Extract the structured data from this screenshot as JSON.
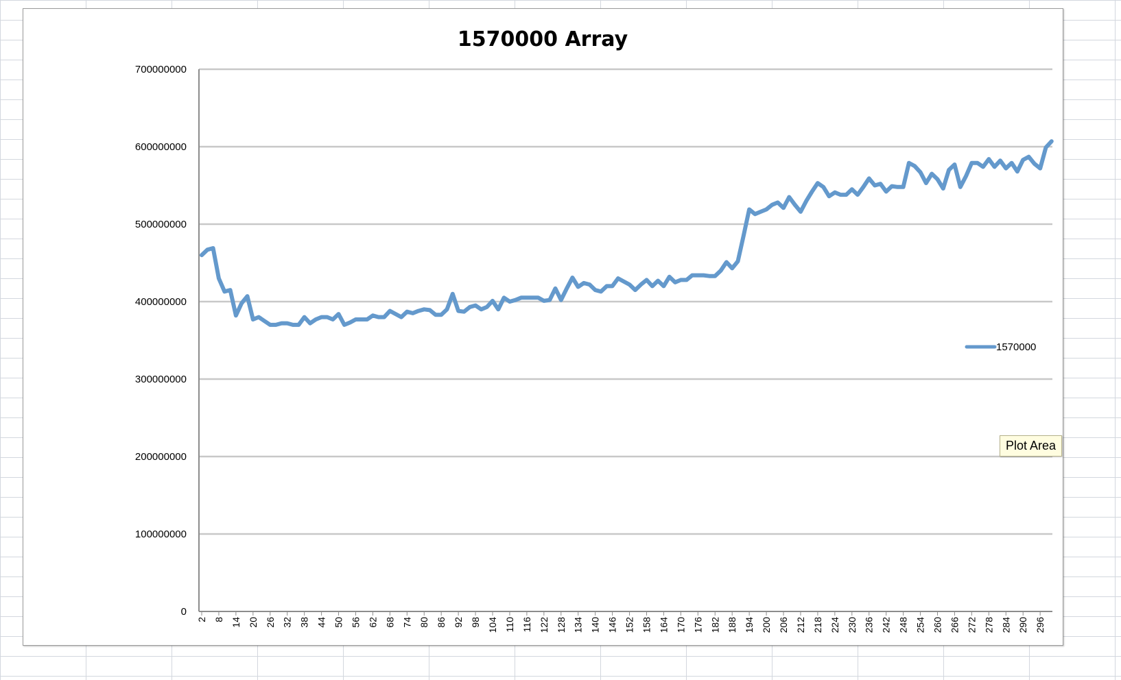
{
  "colors": {
    "series": "#6499cc",
    "gridline": "#c8c8c8",
    "axis": "#8c8c8c",
    "sheet_grid": "#d3d7de",
    "tooltip_bg": "#fffde0"
  },
  "tooltip": {
    "text": "Plot Area"
  },
  "chart_data": {
    "type": "line",
    "title": "1570000 Array",
    "xlabel": "",
    "ylabel": "",
    "ylim": [
      0,
      700000000
    ],
    "yticks": [
      0,
      100000000,
      200000000,
      300000000,
      400000000,
      500000000,
      600000000,
      700000000
    ],
    "ytick_labels": [
      "0",
      "100000000",
      "200000000",
      "300000000",
      "400000000",
      "500000000",
      "600000000",
      "700000000"
    ],
    "xtick_labels": [
      "2",
      "8",
      "14",
      "20",
      "26",
      "32",
      "38",
      "44",
      "50",
      "56",
      "62",
      "68",
      "74",
      "80",
      "86",
      "92",
      "98",
      "104",
      "110",
      "116",
      "122",
      "128",
      "134",
      "140",
      "146",
      "152",
      "158",
      "164",
      "170",
      "176",
      "182",
      "188",
      "194",
      "200",
      "206",
      "212",
      "218",
      "224",
      "230",
      "236",
      "242",
      "248",
      "254",
      "260",
      "266",
      "272",
      "278",
      "284",
      "290",
      "296"
    ],
    "grid": true,
    "legend": {
      "position": "right",
      "entries": [
        "1570000"
      ]
    },
    "series": [
      {
        "name": "1570000",
        "x": [
          2,
          4,
          6,
          8,
          10,
          12,
          14,
          16,
          18,
          20,
          22,
          24,
          26,
          28,
          30,
          32,
          34,
          36,
          38,
          40,
          42,
          44,
          46,
          48,
          50,
          52,
          54,
          56,
          58,
          60,
          62,
          64,
          66,
          68,
          70,
          72,
          74,
          76,
          78,
          80,
          82,
          84,
          86,
          88,
          90,
          92,
          94,
          96,
          98,
          100,
          102,
          104,
          106,
          108,
          110,
          112,
          114,
          116,
          118,
          120,
          122,
          124,
          126,
          128,
          130,
          132,
          134,
          136,
          138,
          140,
          142,
          144,
          146,
          148,
          150,
          152,
          154,
          156,
          158,
          160,
          162,
          164,
          166,
          168,
          170,
          172,
          174,
          176,
          178,
          180,
          182,
          184,
          186,
          188,
          190,
          192,
          194,
          196,
          198,
          200,
          202,
          204,
          206,
          208,
          210,
          212,
          214,
          216,
          218,
          220,
          222,
          224,
          226,
          228,
          230,
          232,
          234,
          236,
          238,
          240,
          242,
          244,
          246,
          248,
          250,
          252,
          254,
          256,
          258,
          260,
          262,
          264,
          266,
          268,
          270,
          272,
          274,
          276,
          278,
          280,
          282,
          284,
          286,
          288,
          290,
          292,
          294,
          296,
          298,
          300
        ],
        "values": [
          460000000,
          467000000,
          469000000,
          430000000,
          413000000,
          415000000,
          382000000,
          398000000,
          407000000,
          377000000,
          380000000,
          375000000,
          370000000,
          370000000,
          372000000,
          372000000,
          370000000,
          370000000,
          380000000,
          372000000,
          377000000,
          380000000,
          380000000,
          377000000,
          384000000,
          370000000,
          373000000,
          377000000,
          377000000,
          377000000,
          382000000,
          380000000,
          380000000,
          388000000,
          384000000,
          380000000,
          387000000,
          385000000,
          388000000,
          390000000,
          389000000,
          383000000,
          383000000,
          390000000,
          410000000,
          388000000,
          387000000,
          393000000,
          395000000,
          390000000,
          393000000,
          401000000,
          390000000,
          405000000,
          400000000,
          402000000,
          405000000,
          405000000,
          405000000,
          405000000,
          401000000,
          402000000,
          417000000,
          402000000,
          417000000,
          431000000,
          419000000,
          424000000,
          422000000,
          415000000,
          413000000,
          420000000,
          420000000,
          430000000,
          426000000,
          422000000,
          415000000,
          422000000,
          428000000,
          420000000,
          427000000,
          420000000,
          432000000,
          425000000,
          428000000,
          428000000,
          434000000,
          434000000,
          434000000,
          433000000,
          433000000,
          440000000,
          451000000,
          443000000,
          452000000,
          485000000,
          519000000,
          513000000,
          516000000,
          519000000,
          525000000,
          528000000,
          521000000,
          535000000,
          525000000,
          516000000,
          530000000,
          542000000,
          553000000,
          548000000,
          536000000,
          541000000,
          538000000,
          538000000,
          545000000,
          538000000,
          548000000,
          559000000,
          550000000,
          552000000,
          542000000,
          549000000,
          548000000,
          548000000,
          579000000,
          575000000,
          567000000,
          553000000,
          565000000,
          558000000,
          546000000,
          570000000,
          577000000,
          548000000,
          562000000,
          579000000,
          579000000,
          574000000,
          584000000,
          574000000,
          582000000,
          572000000,
          579000000,
          568000000,
          583000000,
          587000000,
          578000000,
          572000000,
          599000000,
          607000000
        ]
      }
    ]
  }
}
